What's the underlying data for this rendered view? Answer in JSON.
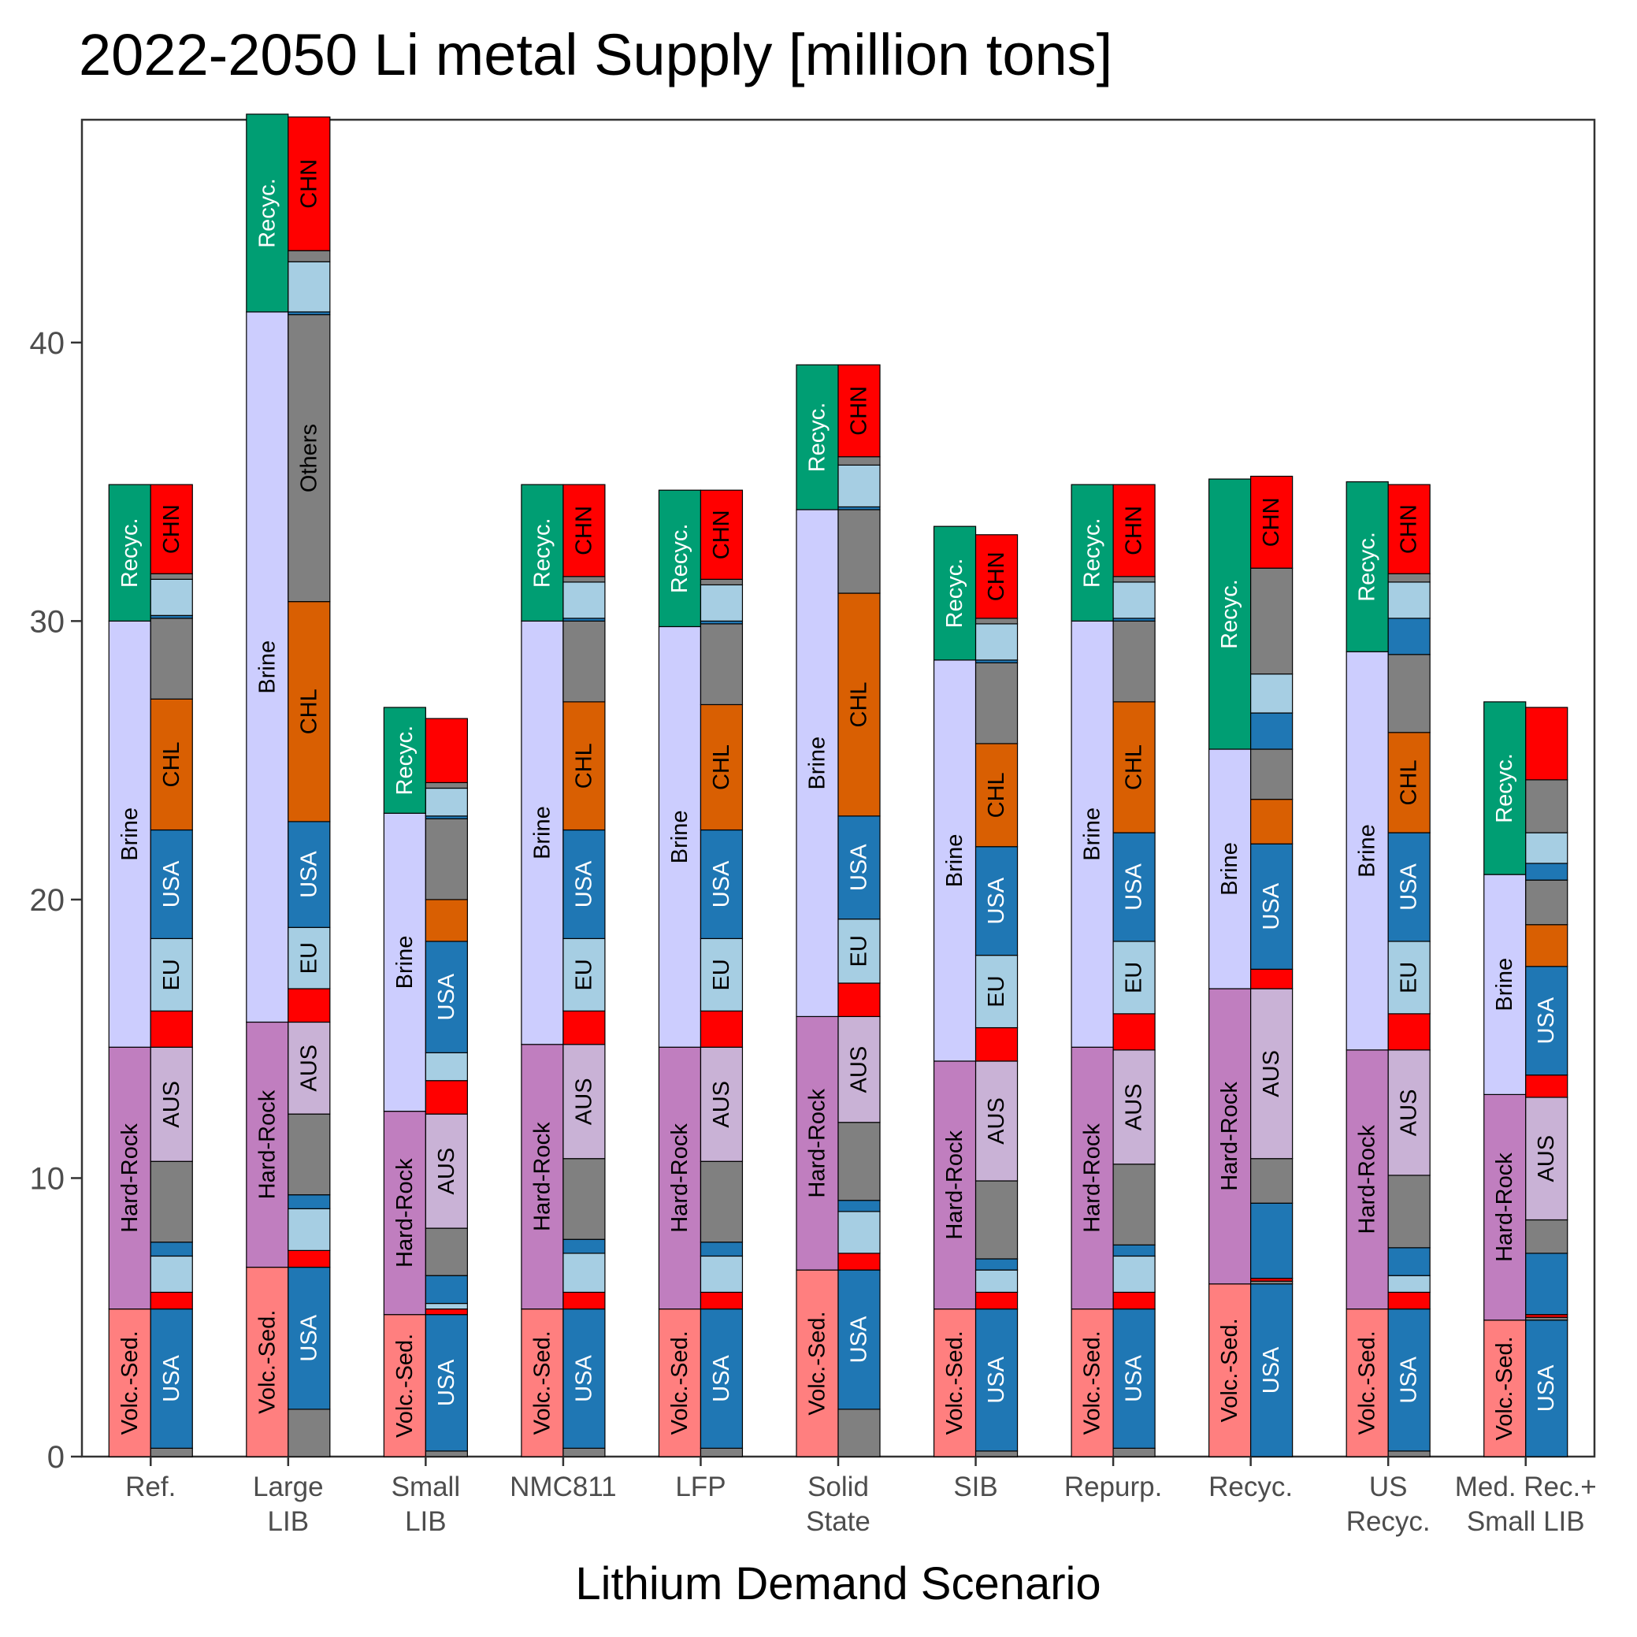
{
  "chart_data": {
    "type": "bar",
    "title": "2022-2050 Li metal Supply [million tons]",
    "xlabel": "Lithium Demand Scenario",
    "ylabel": "",
    "ylim": [
      0,
      48
    ],
    "yticks": [
      0,
      10,
      20,
      30,
      40
    ],
    "grid": false,
    "colors": {
      "Volc.-Sed.": "#ff7f7f",
      "Hard-Rock": "#c07ebf",
      "Brine": "#cccdfe",
      "Recyc.": "#009e73",
      "USA": "#1f77b4",
      "EU": "#a6cee3",
      "AUS": "#c9b2d6",
      "CHL": "#d95f02",
      "CHN": "#ff0000",
      "Others": "#808080",
      "minor": "#808080"
    },
    "categories": [
      {
        "label": [
          "Ref."
        ],
        "resource": [
          [
            "Volc.-Sed.",
            5.3,
            "Volc.-Sed."
          ],
          [
            "Hard-Rock",
            9.4,
            "Hard-Rock"
          ],
          [
            "Brine",
            15.3,
            "Brine"
          ],
          [
            "Recyc.",
            4.9,
            "Recyc."
          ]
        ],
        "country": [
          [
            "minor",
            0.3,
            ""
          ],
          [
            "USA",
            5.0,
            "USA"
          ],
          [
            "CHN",
            0.6,
            ""
          ],
          [
            "EU",
            1.3,
            ""
          ],
          [
            "USA",
            0.5,
            ""
          ],
          [
            "minor",
            2.9,
            ""
          ],
          [
            "AUS",
            4.1,
            "AUS"
          ],
          [
            "CHN",
            1.3,
            ""
          ],
          [
            "EU",
            2.6,
            "EU"
          ],
          [
            "USA",
            3.9,
            "USA"
          ],
          [
            "CHL",
            4.7,
            "CHL"
          ],
          [
            "minor",
            2.9,
            ""
          ],
          [
            "USA",
            0.1,
            ""
          ],
          [
            "EU",
            1.3,
            ""
          ],
          [
            "minor",
            0.2,
            ""
          ],
          [
            "CHN",
            3.2,
            "CHN"
          ]
        ]
      },
      {
        "label": [
          "Large",
          "LIB"
        ],
        "resource": [
          [
            "Volc.-Sed.",
            6.8,
            "Volc.-Sed."
          ],
          [
            "Hard-Rock",
            8.8,
            "Hard-Rock"
          ],
          [
            "Brine",
            25.5,
            "Brine"
          ],
          [
            "Recyc.",
            7.1,
            "Recyc."
          ]
        ],
        "country": [
          [
            "minor",
            1.7,
            ""
          ],
          [
            "USA",
            5.1,
            "USA"
          ],
          [
            "CHN",
            0.6,
            ""
          ],
          [
            "EU",
            1.5,
            ""
          ],
          [
            "USA",
            0.5,
            ""
          ],
          [
            "minor",
            2.9,
            ""
          ],
          [
            "AUS",
            3.3,
            "AUS"
          ],
          [
            "CHN",
            1.2,
            ""
          ],
          [
            "EU",
            2.2,
            "EU"
          ],
          [
            "USA",
            3.8,
            "USA"
          ],
          [
            "CHL",
            7.9,
            "CHL"
          ],
          [
            "Others",
            10.3,
            "Others"
          ],
          [
            "USA",
            0.1,
            ""
          ],
          [
            "EU",
            1.8,
            ""
          ],
          [
            "minor",
            0.4,
            ""
          ],
          [
            "CHN",
            4.8,
            "CHN"
          ]
        ]
      },
      {
        "label": [
          "Small",
          "LIB"
        ],
        "resource": [
          [
            "Volc.-Sed.",
            5.1,
            "Volc.-Sed."
          ],
          [
            "Hard-Rock",
            7.3,
            "Hard-Rock"
          ],
          [
            "Brine",
            10.7,
            "Brine"
          ],
          [
            "Recyc.",
            3.8,
            "Recyc."
          ]
        ],
        "country": [
          [
            "minor",
            0.2,
            ""
          ],
          [
            "USA",
            4.9,
            "USA"
          ],
          [
            "CHN",
            0.2,
            ""
          ],
          [
            "EU",
            0.2,
            ""
          ],
          [
            "USA",
            1.0,
            ""
          ],
          [
            "minor",
            1.7,
            ""
          ],
          [
            "AUS",
            4.1,
            "AUS"
          ],
          [
            "CHN",
            1.2,
            ""
          ],
          [
            "EU",
            1.0,
            ""
          ],
          [
            "USA",
            4.0,
            "USA"
          ],
          [
            "CHL",
            1.5,
            ""
          ],
          [
            "minor",
            2.9,
            ""
          ],
          [
            "USA",
            0.1,
            ""
          ],
          [
            "EU",
            1.0,
            ""
          ],
          [
            "minor",
            0.2,
            ""
          ],
          [
            "CHN",
            2.3,
            ""
          ]
        ]
      },
      {
        "label": [
          "NMC811"
        ],
        "resource": [
          [
            "Volc.-Sed.",
            5.3,
            "Volc.-Sed."
          ],
          [
            "Hard-Rock",
            9.5,
            "Hard-Rock"
          ],
          [
            "Brine",
            15.2,
            "Brine"
          ],
          [
            "Recyc.",
            4.9,
            "Recyc."
          ]
        ],
        "country": [
          [
            "minor",
            0.3,
            ""
          ],
          [
            "USA",
            5.0,
            "USA"
          ],
          [
            "CHN",
            0.6,
            ""
          ],
          [
            "EU",
            1.4,
            ""
          ],
          [
            "USA",
            0.5,
            ""
          ],
          [
            "minor",
            2.9,
            ""
          ],
          [
            "AUS",
            4.1,
            "AUS"
          ],
          [
            "CHN",
            1.2,
            ""
          ],
          [
            "EU",
            2.6,
            "EU"
          ],
          [
            "USA",
            3.9,
            "USA"
          ],
          [
            "CHL",
            4.6,
            "CHL"
          ],
          [
            "minor",
            2.9,
            ""
          ],
          [
            "USA",
            0.1,
            ""
          ],
          [
            "EU",
            1.3,
            ""
          ],
          [
            "minor",
            0.2,
            ""
          ],
          [
            "CHN",
            3.3,
            "CHN"
          ]
        ]
      },
      {
        "label": [
          "LFP"
        ],
        "resource": [
          [
            "Volc.-Sed.",
            5.3,
            "Volc.-Sed."
          ],
          [
            "Hard-Rock",
            9.4,
            "Hard-Rock"
          ],
          [
            "Brine",
            15.1,
            "Brine"
          ],
          [
            "Recyc.",
            4.9,
            "Recyc."
          ]
        ],
        "country": [
          [
            "minor",
            0.3,
            ""
          ],
          [
            "USA",
            5.0,
            "USA"
          ],
          [
            "CHN",
            0.6,
            ""
          ],
          [
            "EU",
            1.3,
            ""
          ],
          [
            "USA",
            0.5,
            ""
          ],
          [
            "minor",
            2.9,
            ""
          ],
          [
            "AUS",
            4.1,
            "AUS"
          ],
          [
            "CHN",
            1.3,
            ""
          ],
          [
            "EU",
            2.6,
            "EU"
          ],
          [
            "USA",
            3.9,
            "USA"
          ],
          [
            "CHL",
            4.5,
            "CHL"
          ],
          [
            "minor",
            2.9,
            ""
          ],
          [
            "USA",
            0.1,
            ""
          ],
          [
            "EU",
            1.3,
            ""
          ],
          [
            "minor",
            0.2,
            ""
          ],
          [
            "CHN",
            3.2,
            "CHN"
          ]
        ]
      },
      {
        "label": [
          "Solid",
          "State"
        ],
        "resource": [
          [
            "Volc.-Sed.",
            6.7,
            "Volc.-Sed."
          ],
          [
            "Hard-Rock",
            9.1,
            "Hard-Rock"
          ],
          [
            "Brine",
            18.2,
            "Brine"
          ],
          [
            "Recyc.",
            5.2,
            "Recyc."
          ]
        ],
        "country": [
          [
            "minor",
            1.7,
            ""
          ],
          [
            "USA",
            5.0,
            "USA"
          ],
          [
            "CHN",
            0.6,
            ""
          ],
          [
            "EU",
            1.5,
            ""
          ],
          [
            "USA",
            0.4,
            ""
          ],
          [
            "minor",
            2.8,
            ""
          ],
          [
            "AUS",
            3.8,
            "AUS"
          ],
          [
            "CHN",
            1.2,
            ""
          ],
          [
            "EU",
            2.3,
            "EU"
          ],
          [
            "USA",
            3.7,
            "USA"
          ],
          [
            "CHL",
            8.0,
            "CHL"
          ],
          [
            "minor",
            3.0,
            ""
          ],
          [
            "USA",
            0.1,
            ""
          ],
          [
            "EU",
            1.5,
            ""
          ],
          [
            "minor",
            0.3,
            ""
          ],
          [
            "CHN",
            3.3,
            "CHN"
          ]
        ]
      },
      {
        "label": [
          "SIB"
        ],
        "resource": [
          [
            "Volc.-Sed.",
            5.3,
            "Volc.-Sed."
          ],
          [
            "Hard-Rock",
            8.9,
            "Hard-Rock"
          ],
          [
            "Brine",
            14.4,
            "Brine"
          ],
          [
            "Recyc.",
            4.8,
            "Recyc."
          ]
        ],
        "country": [
          [
            "minor",
            0.2,
            ""
          ],
          [
            "USA",
            5.1,
            "USA"
          ],
          [
            "CHN",
            0.6,
            ""
          ],
          [
            "EU",
            0.8,
            ""
          ],
          [
            "USA",
            0.4,
            ""
          ],
          [
            "minor",
            2.8,
            ""
          ],
          [
            "AUS",
            4.3,
            "AUS"
          ],
          [
            "CHN",
            1.2,
            ""
          ],
          [
            "EU",
            2.6,
            "EU"
          ],
          [
            "USA",
            3.9,
            "USA"
          ],
          [
            "CHL",
            3.7,
            "CHL"
          ],
          [
            "minor",
            2.9,
            ""
          ],
          [
            "USA",
            0.1,
            ""
          ],
          [
            "EU",
            1.3,
            ""
          ],
          [
            "minor",
            0.2,
            ""
          ],
          [
            "CHN",
            3.0,
            "CHN"
          ]
        ]
      },
      {
        "label": [
          "Repurp."
        ],
        "resource": [
          [
            "Volc.-Sed.",
            5.3,
            "Volc.-Sed."
          ],
          [
            "Hard-Rock",
            9.4,
            "Hard-Rock"
          ],
          [
            "Brine",
            15.3,
            "Brine"
          ],
          [
            "Recyc.",
            4.9,
            "Recyc."
          ]
        ],
        "country": [
          [
            "minor",
            0.3,
            ""
          ],
          [
            "USA",
            5.0,
            "USA"
          ],
          [
            "CHN",
            0.6,
            ""
          ],
          [
            "EU",
            1.3,
            ""
          ],
          [
            "USA",
            0.4,
            ""
          ],
          [
            "minor",
            2.9,
            ""
          ],
          [
            "AUS",
            4.1,
            "AUS"
          ],
          [
            "CHN",
            1.3,
            ""
          ],
          [
            "EU",
            2.6,
            "EU"
          ],
          [
            "USA",
            3.9,
            "USA"
          ],
          [
            "CHL",
            4.7,
            "CHL"
          ],
          [
            "minor",
            2.9,
            ""
          ],
          [
            "USA",
            0.1,
            ""
          ],
          [
            "EU",
            1.3,
            ""
          ],
          [
            "minor",
            0.2,
            ""
          ],
          [
            "CHN",
            3.3,
            "CHN"
          ]
        ]
      },
      {
        "label": [
          "Recyc."
        ],
        "resource": [
          [
            "Volc.-Sed.",
            6.2,
            "Volc.-Sed."
          ],
          [
            "Hard-Rock",
            10.6,
            "Hard-Rock"
          ],
          [
            "Brine",
            8.6,
            "Brine"
          ],
          [
            "Recyc.",
            9.7,
            "Recyc."
          ]
        ],
        "country": [
          [
            "USA",
            6.2,
            "USA"
          ],
          [
            "minor",
            0.1,
            ""
          ],
          [
            "CHN",
            0.1,
            ""
          ],
          [
            "USA",
            2.7,
            ""
          ],
          [
            "minor",
            1.6,
            ""
          ],
          [
            "AUS",
            6.1,
            "AUS"
          ],
          [
            "CHN",
            0.7,
            ""
          ],
          [
            "USA",
            4.5,
            "USA"
          ],
          [
            "CHL",
            1.6,
            ""
          ],
          [
            "minor",
            1.8,
            ""
          ],
          [
            "USA",
            1.3,
            ""
          ],
          [
            "EU",
            1.4,
            ""
          ],
          [
            "minor",
            3.8,
            ""
          ],
          [
            "CHN",
            3.3,
            "CHN"
          ]
        ]
      },
      {
        "label": [
          "US",
          "Recyc."
        ],
        "resource": [
          [
            "Volc.-Sed.",
            5.3,
            "Volc.-Sed."
          ],
          [
            "Hard-Rock",
            9.3,
            "Hard-Rock"
          ],
          [
            "Brine",
            14.3,
            "Brine"
          ],
          [
            "Recyc.",
            6.1,
            "Recyc."
          ]
        ],
        "country": [
          [
            "minor",
            0.2,
            ""
          ],
          [
            "USA",
            5.1,
            "USA"
          ],
          [
            "CHN",
            0.6,
            ""
          ],
          [
            "EU",
            0.6,
            ""
          ],
          [
            "USA",
            1.0,
            ""
          ],
          [
            "minor",
            2.6,
            ""
          ],
          [
            "AUS",
            4.5,
            "AUS"
          ],
          [
            "CHN",
            1.3,
            ""
          ],
          [
            "EU",
            2.6,
            "EU"
          ],
          [
            "USA",
            3.9,
            "USA"
          ],
          [
            "CHL",
            3.6,
            "CHL"
          ],
          [
            "minor",
            2.8,
            ""
          ],
          [
            "USA",
            1.3,
            ""
          ],
          [
            "EU",
            1.3,
            ""
          ],
          [
            "minor",
            0.3,
            ""
          ],
          [
            "CHN",
            3.2,
            "CHN"
          ]
        ]
      },
      {
        "label": [
          "Med. Rec.+",
          "Small LIB"
        ],
        "resource": [
          [
            "Volc.-Sed.",
            4.9,
            "Volc.-Sed."
          ],
          [
            "Hard-Rock",
            8.1,
            "Hard-Rock"
          ],
          [
            "Brine",
            7.9,
            "Brine"
          ],
          [
            "Recyc.",
            6.2,
            "Recyc."
          ]
        ],
        "country": [
          [
            "USA",
            4.9,
            "USA"
          ],
          [
            "minor",
            0.1,
            ""
          ],
          [
            "CHN",
            0.1,
            ""
          ],
          [
            "USA",
            2.2,
            ""
          ],
          [
            "minor",
            1.2,
            ""
          ],
          [
            "AUS",
            4.4,
            "AUS"
          ],
          [
            "CHN",
            0.8,
            ""
          ],
          [
            "USA",
            3.9,
            "USA"
          ],
          [
            "CHL",
            1.5,
            ""
          ],
          [
            "minor",
            1.6,
            ""
          ],
          [
            "USA",
            0.6,
            ""
          ],
          [
            "EU",
            1.1,
            ""
          ],
          [
            "minor",
            1.9,
            ""
          ],
          [
            "CHN",
            2.6,
            ""
          ]
        ]
      }
    ]
  }
}
